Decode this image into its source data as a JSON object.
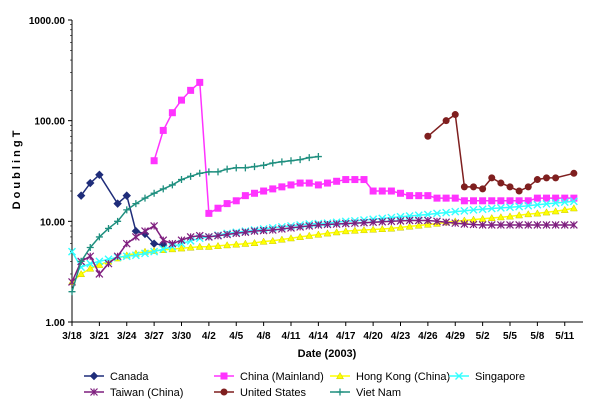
{
  "chart_data": {
    "type": "line",
    "title": "",
    "xlabel": "Date (2003)",
    "ylabel": "D o u b l i n g   T",
    "yscale": "log",
    "ylim": [
      1,
      1000
    ],
    "xlim": [
      "3/18",
      "5/13"
    ],
    "grid": false,
    "legend_position": "bottom",
    "y_tick_labels": [
      "1.00",
      "10.00",
      "100.00",
      "1000.00"
    ],
    "x_tick_labels": [
      "3/18",
      "3/21",
      "3/24",
      "3/27",
      "3/30",
      "4/2",
      "4/5",
      "4/8",
      "4/11",
      "4/14",
      "4/17",
      "4/20",
      "4/23",
      "4/26",
      "4/29",
      "5/2",
      "5/5",
      "5/8",
      "5/11"
    ],
    "series": [
      {
        "name": "Canada",
        "color": "#1f2d7a",
        "marker": "diamond",
        "x": [
          "3/19",
          "3/20",
          "3/21",
          "3/23",
          "3/24",
          "3/25",
          "3/26",
          "3/27",
          "3/28"
        ],
        "y": [
          18,
          24,
          29,
          15,
          18,
          8,
          7.5,
          6,
          5.8
        ]
      },
      {
        "name": "China (Mainland)",
        "color": "#ff33ff",
        "marker": "square",
        "x": [
          "3/27",
          "3/28",
          "3/29",
          "3/30",
          "3/31",
          "4/1",
          "4/2",
          "4/3",
          "4/4",
          "4/5",
          "4/6",
          "4/7",
          "4/8",
          "4/9",
          "4/10",
          "4/11",
          "4/12",
          "4/13",
          "4/14",
          "4/15",
          "4/16",
          "4/17",
          "4/18",
          "4/19",
          "4/20",
          "4/21",
          "4/22",
          "4/23",
          "4/24",
          "4/25",
          "4/26",
          "4/27",
          "4/28",
          "4/29",
          "4/30",
          "5/1",
          "5/2",
          "5/3",
          "5/4",
          "5/5",
          "5/6",
          "5/7",
          "5/8",
          "5/9",
          "5/10",
          "5/11",
          "5/12"
        ],
        "y": [
          40,
          80,
          120,
          160,
          200,
          240,
          12,
          13.5,
          15,
          16,
          18,
          19,
          20,
          21,
          22,
          23,
          24,
          24,
          23,
          24,
          25,
          26,
          26,
          26,
          20,
          20,
          20,
          19,
          18,
          18,
          18,
          17,
          17,
          17,
          16,
          16,
          16,
          16,
          16,
          16,
          16,
          16,
          17,
          17,
          17,
          17,
          17
        ]
      },
      {
        "name": "Hong Kong (China)",
        "color": "#ffff00",
        "marker": "triangle",
        "x": [
          "3/18",
          "3/19",
          "3/20",
          "3/21",
          "3/22",
          "3/23",
          "3/24",
          "3/25",
          "3/26",
          "3/27",
          "3/28",
          "3/29",
          "3/30",
          "3/31",
          "4/1",
          "4/2",
          "4/3",
          "4/4",
          "4/5",
          "4/6",
          "4/7",
          "4/8",
          "4/9",
          "4/10",
          "4/11",
          "4/12",
          "4/13",
          "4/14",
          "4/15",
          "4/16",
          "4/17",
          "4/18",
          "4/19",
          "4/20",
          "4/21",
          "4/22",
          "4/23",
          "4/24",
          "4/25",
          "4/26",
          "4/27",
          "4/28",
          "4/29",
          "4/30",
          "5/1",
          "5/2",
          "5/3",
          "5/4",
          "5/5",
          "5/6",
          "5/7",
          "5/8",
          "5/9",
          "5/10",
          "5/11",
          "5/12"
        ],
        "y": [
          2.5,
          3.0,
          3.4,
          3.7,
          4.0,
          4.3,
          4.6,
          4.8,
          5.0,
          5.1,
          5.2,
          5.3,
          5.4,
          5.5,
          5.6,
          5.6,
          5.7,
          5.8,
          5.9,
          6.0,
          6.1,
          6.3,
          6.4,
          6.6,
          6.8,
          7.0,
          7.2,
          7.4,
          7.6,
          7.8,
          8.0,
          8.1,
          8.2,
          8.3,
          8.4,
          8.5,
          8.7,
          8.9,
          9.1,
          9.3,
          9.5,
          9.8,
          10.0,
          10.2,
          10.4,
          10.6,
          10.8,
          11.0,
          11.2,
          11.5,
          11.8,
          12.0,
          12.3,
          12.6,
          13.0,
          13.5
        ]
      },
      {
        "name": "Singapore",
        "color": "#33ffff",
        "marker": "x",
        "x": [
          "3/18",
          "3/19",
          "3/20",
          "3/21",
          "3/22",
          "3/23",
          "3/24",
          "3/25",
          "3/26",
          "3/27",
          "3/28",
          "3/29",
          "3/30",
          "3/31",
          "4/1",
          "4/2",
          "4/3",
          "4/4",
          "4/5",
          "4/6",
          "4/7",
          "4/8",
          "4/9",
          "4/10",
          "4/11",
          "4/12",
          "4/13",
          "4/14",
          "4/15",
          "4/16",
          "4/17",
          "4/18",
          "4/19",
          "4/20",
          "4/21",
          "4/22",
          "4/23",
          "4/24",
          "4/25",
          "4/26",
          "4/27",
          "4/28",
          "4/29",
          "4/30",
          "5/1",
          "5/2",
          "5/3",
          "5/4",
          "5/5",
          "5/6",
          "5/7",
          "5/8",
          "5/9",
          "5/10",
          "5/11",
          "5/12"
        ],
        "y": [
          5.0,
          3.5,
          3.8,
          4.0,
          4.2,
          4.4,
          4.5,
          4.6,
          4.8,
          5.0,
          5.3,
          5.6,
          6.0,
          6.4,
          6.8,
          7.0,
          7.3,
          7.6,
          7.8,
          8.0,
          8.2,
          8.4,
          8.6,
          8.8,
          9.0,
          9.2,
          9.4,
          9.5,
          9.6,
          9.8,
          10.0,
          10.1,
          10.3,
          10.5,
          10.7,
          10.9,
          11.1,
          11.3,
          11.5,
          11.7,
          12.0,
          12.2,
          12.5,
          12.7,
          13.0,
          13.2,
          13.4,
          13.6,
          13.8,
          14.0,
          14.3,
          14.6,
          14.9,
          15.2,
          15.5,
          15.8
        ]
      },
      {
        "name": "Taiwan (China)",
        "color": "#7f1f7f",
        "marker": "star",
        "x": [
          "3/18",
          "3/19",
          "3/20",
          "3/21",
          "3/22",
          "3/23",
          "3/24",
          "3/25",
          "3/26",
          "3/27",
          "3/28",
          "3/29",
          "3/30",
          "3/31",
          "4/1",
          "4/2",
          "4/3",
          "4/4",
          "4/5",
          "4/6",
          "4/7",
          "4/8",
          "4/9",
          "4/10",
          "4/11",
          "4/12",
          "4/13",
          "4/14",
          "4/15",
          "4/16",
          "4/17",
          "4/18",
          "4/19",
          "4/20",
          "4/21",
          "4/22",
          "4/23",
          "4/24",
          "4/25",
          "4/26",
          "4/27",
          "4/28",
          "4/29",
          "4/30",
          "5/1",
          "5/2",
          "5/3",
          "5/4",
          "5/5",
          "5/6",
          "5/7",
          "5/8",
          "5/9",
          "5/10",
          "5/11",
          "5/12"
        ],
        "y": [
          2.5,
          4.0,
          4.5,
          3.0,
          3.8,
          4.5,
          6.0,
          7.0,
          8.0,
          9.0,
          6.5,
          6.0,
          6.5,
          7.0,
          7.2,
          7.0,
          7.2,
          7.4,
          7.6,
          7.8,
          8.0,
          8.1,
          8.2,
          8.4,
          8.6,
          8.8,
          9.0,
          9.2,
          9.3,
          9.4,
          9.5,
          9.6,
          9.7,
          9.8,
          9.9,
          10.0,
          10.1,
          10.2,
          10.2,
          10.2,
          10.0,
          9.8,
          9.6,
          9.4,
          9.3,
          9.2,
          9.2,
          9.2,
          9.2,
          9.2,
          9.2,
          9.2,
          9.2,
          9.2,
          9.2,
          9.2
        ]
      },
      {
        "name": "United States",
        "color": "#7f1f1f",
        "marker": "circle",
        "x": [
          "4/26",
          "4/28",
          "4/29",
          "4/30",
          "5/1",
          "5/2",
          "5/3",
          "5/4",
          "5/5",
          "5/6",
          "5/7",
          "5/8",
          "5/9",
          "5/10",
          "5/12"
        ],
        "y": [
          70,
          100,
          115,
          22,
          22,
          21,
          27,
          24,
          22,
          20,
          22,
          26,
          27,
          27,
          30
        ]
      },
      {
        "name": "Viet Nam",
        "color": "#1f8f7f",
        "marker": "plus",
        "x": [
          "3/18",
          "3/19",
          "3/20",
          "3/21",
          "3/22",
          "3/23",
          "3/24",
          "3/25",
          "3/26",
          "3/27",
          "3/28",
          "3/29",
          "3/30",
          "3/31",
          "4/1",
          "4/2",
          "4/3",
          "4/4",
          "4/5",
          "4/6",
          "4/7",
          "4/8",
          "4/9",
          "4/10",
          "4/11",
          "4/12",
          "4/13",
          "4/14"
        ],
        "y": [
          2.0,
          4.0,
          5.5,
          7.0,
          8.5,
          10.0,
          13.0,
          15.0,
          17.0,
          19.0,
          21.0,
          23.0,
          26.0,
          28.0,
          30.0,
          31.0,
          31.0,
          33.0,
          34.0,
          34.0,
          35.0,
          36.0,
          38.0,
          39.0,
          40.0,
          41.0,
          43.0,
          44.0
        ]
      }
    ]
  }
}
